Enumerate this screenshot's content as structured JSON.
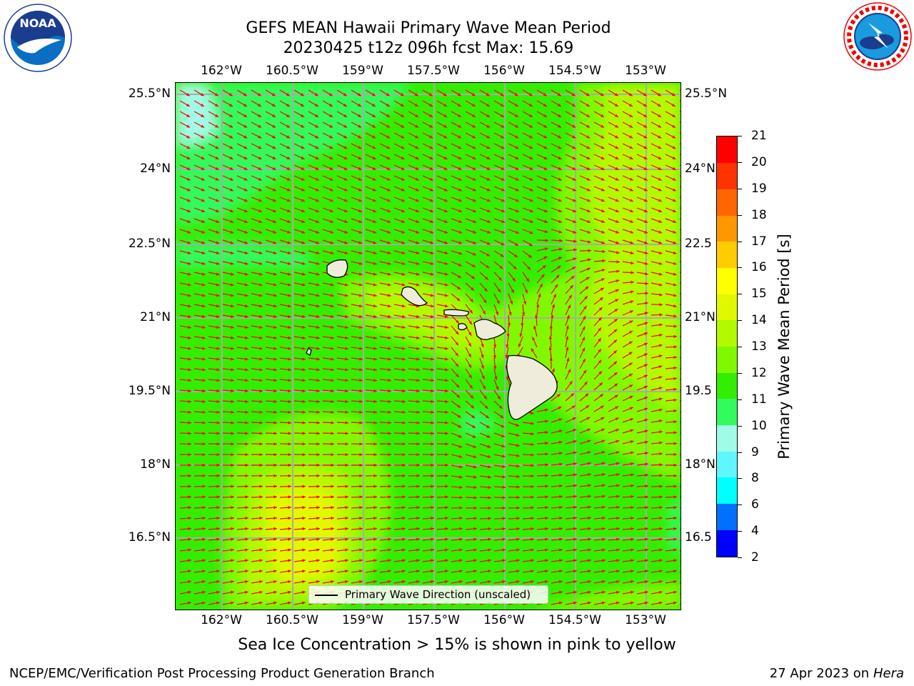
{
  "header": {
    "title_line1": "GEFS MEAN Hawaii Primary Wave Mean Period",
    "title_line2": "20230425 t12z 096h fcst   Max: 15.69"
  },
  "logos": {
    "left": {
      "name": "noaa-logo",
      "text": "NOAA",
      "ring_text": "NATIONAL OCEANIC AND ATMOSPHERIC ADMINISTRATION · U.S. DEPARTMENT OF COMMERCE"
    },
    "right": {
      "name": "national-weather-service-logo",
      "ring_text": "NATIONAL WEATHER SERVICE"
    }
  },
  "map": {
    "lon_labels": [
      "162°W",
      "160.5°W",
      "159°W",
      "157.5°W",
      "156°W",
      "154.5°W",
      "153°W"
    ],
    "lat_labels_left": [
      "25.5°N",
      "24°N",
      "22.5°N",
      "21°N",
      "19.5°N",
      "18°N",
      "16.5°N"
    ],
    "lat_labels_right": [
      "25.5°N",
      "24°N",
      "22.5",
      "21°N",
      "19.5",
      "18°N",
      "16.5"
    ],
    "arrow_color": "#ff0000",
    "legend_label": "Primary Wave Direction (unscaled)"
  },
  "colorbar": {
    "label": "Primary Wave Mean Period [s]",
    "tick_labels": [
      "2",
      "4",
      "6",
      "8",
      "9",
      "10",
      "11",
      "12",
      "13",
      "14",
      "15",
      "16",
      "17",
      "18",
      "19",
      "20",
      "21"
    ],
    "colors": [
      "#0000ff",
      "#0070ff",
      "#00ffff",
      "#5ff6ff",
      "#a0fce6",
      "#33fa5d",
      "#33ee00",
      "#80f900",
      "#b3f900",
      "#e0f900",
      "#ffff00",
      "#ffcc00",
      "#ff9800",
      "#ff6600",
      "#ff3300",
      "#ff0000"
    ]
  },
  "note": "Sea Ice Concentration > 15% is shown in pink to yellow",
  "footer": {
    "left": "NCEP/EMC/Verification Post Processing Product Generation Branch",
    "right_date": "27 Apr 2023 on",
    "right_host": "Hera"
  }
}
